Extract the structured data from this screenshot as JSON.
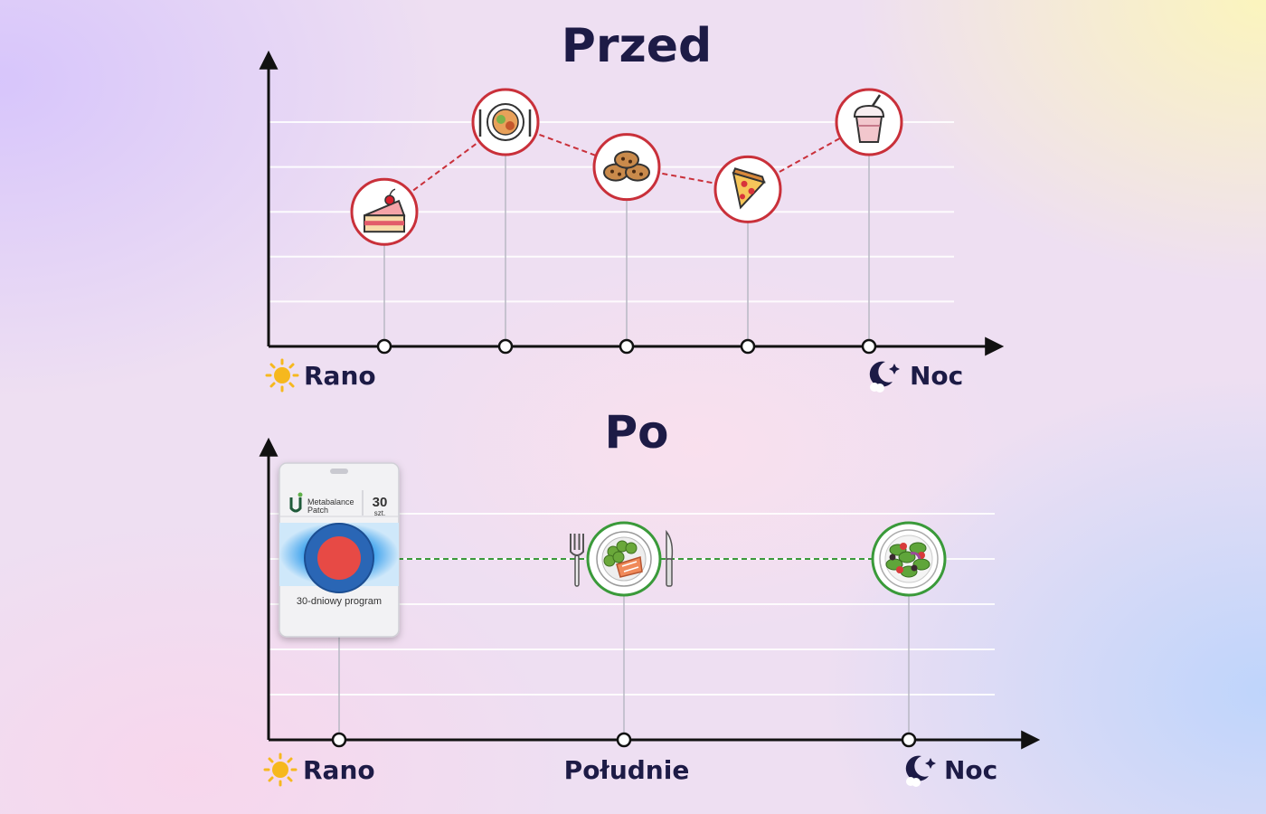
{
  "chart_data": [
    {
      "type": "line",
      "title": "Przed",
      "xlabel_start": "Rano",
      "xlabel_end": "Noc",
      "grid": true,
      "points": [
        {
          "x": 1,
          "y": 3.0,
          "icon": "cake-icon"
        },
        {
          "x": 2,
          "y": 5.0,
          "icon": "meal-plate-icon"
        },
        {
          "x": 3,
          "y": 4.0,
          "icon": "cookies-icon"
        },
        {
          "x": 4,
          "y": 3.5,
          "icon": "pizza-icon"
        },
        {
          "x": 5,
          "y": 5.0,
          "icon": "milkshake-icon"
        }
      ],
      "ylim": [
        0,
        5
      ],
      "line_color": "#c9303a"
    },
    {
      "type": "line",
      "title": "Po",
      "xlabel_start": "Rano",
      "xlabel_mid": "Południe",
      "xlabel_end": "Noc",
      "grid": true,
      "points": [
        {
          "x": 1,
          "y": 4,
          "icon": "patch-pack-icon"
        },
        {
          "x": 2,
          "y": 4,
          "icon": "salmon-plate-icon"
        },
        {
          "x": 3,
          "y": 4,
          "icon": "salad-icon"
        }
      ],
      "ylim": [
        0,
        5
      ],
      "line_color": "#3a9a3a"
    }
  ],
  "patch": {
    "brand": "Metabalance",
    "product": "Patch",
    "count": "30",
    "unit": "szt.",
    "program": "30-dniowy program"
  },
  "icons": {
    "morning": "sun-icon",
    "night": "moon-stars-icon"
  }
}
